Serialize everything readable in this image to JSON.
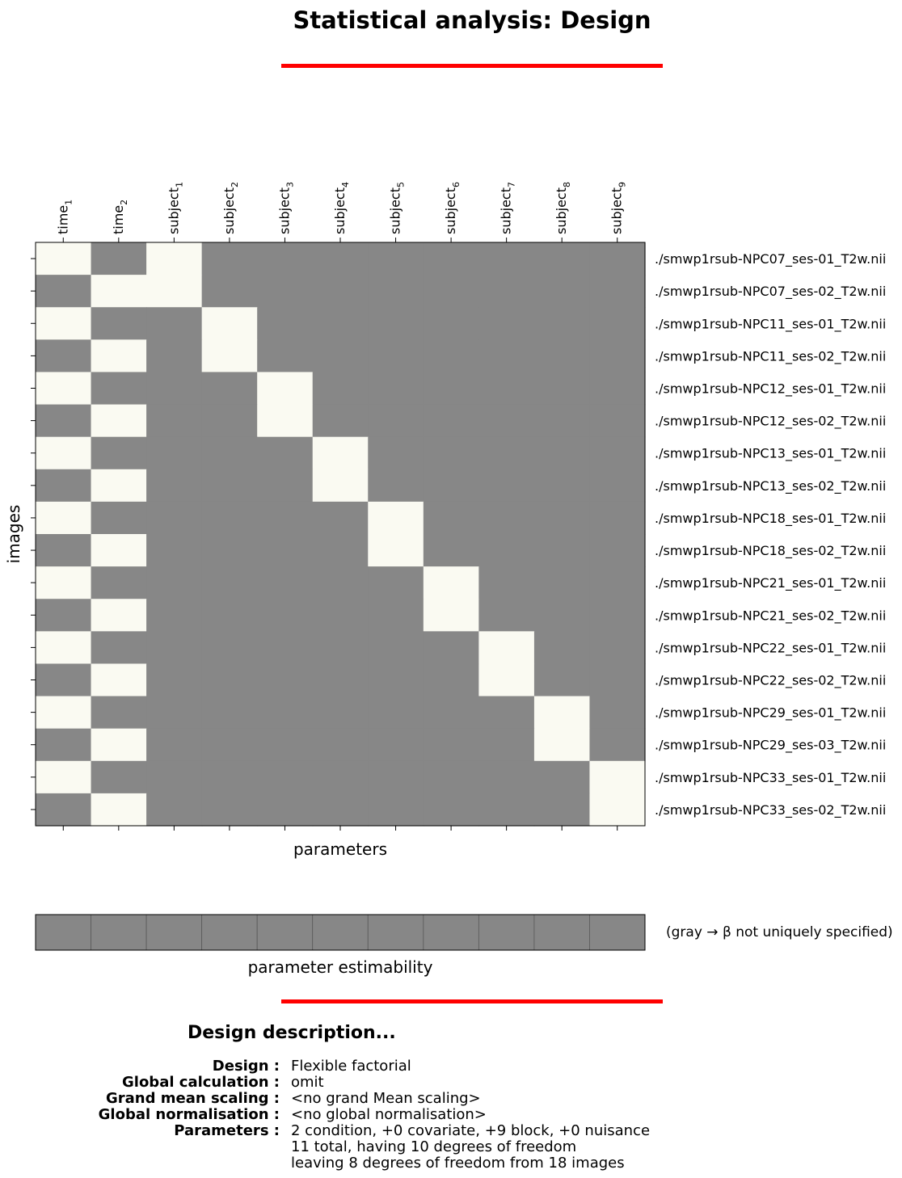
{
  "title": "Statistical analysis: Design",
  "chart_data": {
    "type": "heatmap",
    "xlabel": "parameters",
    "ylabel": "images",
    "parameters": [
      {
        "name": "time",
        "sub": "1"
      },
      {
        "name": "time",
        "sub": "2"
      },
      {
        "name": "subject",
        "sub": "1"
      },
      {
        "name": "subject",
        "sub": "2"
      },
      {
        "name": "subject",
        "sub": "3"
      },
      {
        "name": "subject",
        "sub": "4"
      },
      {
        "name": "subject",
        "sub": "5"
      },
      {
        "name": "subject",
        "sub": "6"
      },
      {
        "name": "subject",
        "sub": "7"
      },
      {
        "name": "subject",
        "sub": "8"
      },
      {
        "name": "subject",
        "sub": "9"
      }
    ],
    "images": [
      "./smwp1rsub-NPC07_ses-01_T2w.nii",
      "./smwp1rsub-NPC07_ses-02_T2w.nii",
      "./smwp1rsub-NPC11_ses-01_T2w.nii",
      "./smwp1rsub-NPC11_ses-02_T2w.nii",
      "./smwp1rsub-NPC12_ses-01_T2w.nii",
      "./smwp1rsub-NPC12_ses-02_T2w.nii",
      "./smwp1rsub-NPC13_ses-01_T2w.nii",
      "./smwp1rsub-NPC13_ses-02_T2w.nii",
      "./smwp1rsub-NPC18_ses-01_T2w.nii",
      "./smwp1rsub-NPC18_ses-02_T2w.nii",
      "./smwp1rsub-NPC21_ses-01_T2w.nii",
      "./smwp1rsub-NPC21_ses-02_T2w.nii",
      "./smwp1rsub-NPC22_ses-01_T2w.nii",
      "./smwp1rsub-NPC22_ses-02_T2w.nii",
      "./smwp1rsub-NPC29_ses-01_T2w.nii",
      "./smwp1rsub-NPC29_ses-03_T2w.nii",
      "./smwp1rsub-NPC33_ses-01_T2w.nii",
      "./smwp1rsub-NPC33_ses-02_T2w.nii"
    ],
    "matrix": [
      [
        1,
        0,
        1,
        0,
        0,
        0,
        0,
        0,
        0,
        0,
        0
      ],
      [
        0,
        1,
        1,
        0,
        0,
        0,
        0,
        0,
        0,
        0,
        0
      ],
      [
        1,
        0,
        0,
        1,
        0,
        0,
        0,
        0,
        0,
        0,
        0
      ],
      [
        0,
        1,
        0,
        1,
        0,
        0,
        0,
        0,
        0,
        0,
        0
      ],
      [
        1,
        0,
        0,
        0,
        1,
        0,
        0,
        0,
        0,
        0,
        0
      ],
      [
        0,
        1,
        0,
        0,
        1,
        0,
        0,
        0,
        0,
        0,
        0
      ],
      [
        1,
        0,
        0,
        0,
        0,
        1,
        0,
        0,
        0,
        0,
        0
      ],
      [
        0,
        1,
        0,
        0,
        0,
        1,
        0,
        0,
        0,
        0,
        0
      ],
      [
        1,
        0,
        0,
        0,
        0,
        0,
        1,
        0,
        0,
        0,
        0
      ],
      [
        0,
        1,
        0,
        0,
        0,
        0,
        1,
        0,
        0,
        0,
        0
      ],
      [
        1,
        0,
        0,
        0,
        0,
        0,
        0,
        1,
        0,
        0,
        0
      ],
      [
        0,
        1,
        0,
        0,
        0,
        0,
        0,
        1,
        0,
        0,
        0
      ],
      [
        1,
        0,
        0,
        0,
        0,
        0,
        0,
        0,
        1,
        0,
        0
      ],
      [
        0,
        1,
        0,
        0,
        0,
        0,
        0,
        0,
        1,
        0,
        0
      ],
      [
        1,
        0,
        0,
        0,
        0,
        0,
        0,
        0,
        0,
        1,
        0
      ],
      [
        0,
        1,
        0,
        0,
        0,
        0,
        0,
        0,
        0,
        1,
        0
      ],
      [
        1,
        0,
        0,
        0,
        0,
        0,
        0,
        0,
        0,
        0,
        1
      ],
      [
        0,
        1,
        0,
        0,
        0,
        0,
        0,
        0,
        0,
        0,
        1
      ]
    ],
    "estimability": {
      "label": "parameter estimability",
      "values": [
        0,
        0,
        0,
        0,
        0,
        0,
        0,
        0,
        0,
        0,
        0
      ],
      "note": "(gray → β not uniquely specified)"
    },
    "colors": {
      "one": "#fafaf2",
      "zero": "#878787",
      "accent": "#ff0000"
    }
  },
  "description": {
    "title": "Design description...",
    "rows": [
      {
        "key": "Design :",
        "lines": [
          "Flexible factorial"
        ]
      },
      {
        "key": "Global calculation :",
        "lines": [
          "omit"
        ]
      },
      {
        "key": "Grand mean scaling :",
        "lines": [
          "<no grand Mean scaling>"
        ]
      },
      {
        "key": "Global normalisation :",
        "lines": [
          "<no global normalisation>"
        ]
      },
      {
        "key": "Parameters :",
        "lines": [
          "2 condition, +0 covariate, +9 block, +0 nuisance",
          "11 total, having 10 degrees of freedom",
          "leaving 8 degrees of freedom from 18 images"
        ]
      }
    ]
  }
}
